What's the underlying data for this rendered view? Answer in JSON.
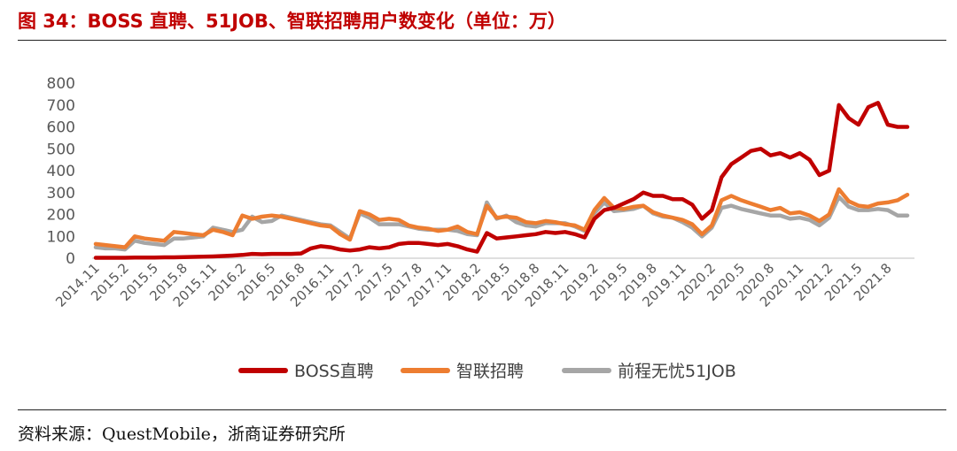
{
  "figure": {
    "title": "图 34：BOSS 直聘、51JOB、智联招聘用户数变化（单位：万）",
    "source": "资料来源：QuestMobile，浙商证券研究所"
  },
  "chart_data": {
    "type": "line",
    "title": "图 34：BOSS 直聘、51JOB、智联招聘用户数变化（单位：万）",
    "xlabel": "",
    "ylabel": "",
    "ylim": [
      0,
      800
    ],
    "yticks": [
      "0",
      "100",
      "200",
      "300",
      "400",
      "500",
      "600",
      "700",
      "800"
    ],
    "xtick_labels": [
      "2014.11",
      "2015.2",
      "2015.5",
      "2015.8",
      "2015.11",
      "2016.2",
      "2016.5",
      "2016.8",
      "2016.11",
      "2017.2",
      "2017.5",
      "2017.8",
      "2017.11",
      "2018.2",
      "2018.5",
      "2018.8",
      "2018.11",
      "2019.2",
      "2019.5",
      "2019.8",
      "2019.11",
      "2020.2",
      "2020.5",
      "2020.8",
      "2020.11",
      "2021.2",
      "2021.5",
      "2021.8"
    ],
    "grid": false,
    "legend_position": "bottom",
    "x": [
      "2014.11",
      "2014.12",
      "2015.1",
      "2015.2",
      "2015.3",
      "2015.4",
      "2015.5",
      "2015.6",
      "2015.7",
      "2015.8",
      "2015.9",
      "2015.10",
      "2015.11",
      "2015.12",
      "2016.1",
      "2016.2",
      "2016.3",
      "2016.4",
      "2016.5",
      "2016.6",
      "2016.7",
      "2016.8",
      "2016.9",
      "2016.10",
      "2016.11",
      "2016.12",
      "2017.1",
      "2017.2",
      "2017.3",
      "2017.4",
      "2017.5",
      "2017.6",
      "2017.7",
      "2017.8",
      "2017.9",
      "2017.10",
      "2017.11",
      "2017.12",
      "2018.1",
      "2018.2",
      "2018.3",
      "2018.4",
      "2018.5",
      "2018.6",
      "2018.7",
      "2018.8",
      "2018.9",
      "2018.10",
      "2018.11",
      "2018.12",
      "2019.1",
      "2019.2",
      "2019.3",
      "2019.4",
      "2019.5",
      "2019.6",
      "2019.7",
      "2019.8",
      "2019.9",
      "2019.10",
      "2019.11",
      "2019.12",
      "2020.1",
      "2020.2",
      "2020.3",
      "2020.4",
      "2020.5",
      "2020.6",
      "2020.7",
      "2020.8",
      "2020.9",
      "2020.10",
      "2020.11",
      "2020.12",
      "2021.1",
      "2021.2",
      "2021.3",
      "2021.4",
      "2021.5",
      "2021.6",
      "2021.7",
      "2021.8",
      "2021.9",
      "2021.10"
    ],
    "series": [
      {
        "name": "BOSS直聘",
        "color": "#c00000",
        "values": [
          2,
          2,
          2,
          2,
          3,
          3,
          3,
          4,
          4,
          5,
          6,
          7,
          8,
          10,
          12,
          15,
          20,
          18,
          20,
          20,
          20,
          22,
          45,
          55,
          50,
          40,
          35,
          40,
          50,
          45,
          50,
          65,
          70,
          70,
          65,
          60,
          65,
          55,
          40,
          30,
          115,
          90,
          95,
          100,
          105,
          110,
          120,
          115,
          120,
          110,
          95,
          180,
          220,
          230,
          250,
          270,
          300,
          285,
          285,
          270,
          270,
          245,
          180,
          220,
          370,
          430,
          460,
          490,
          500,
          470,
          480,
          460,
          480,
          450,
          380,
          400,
          700,
          640,
          610,
          690,
          710,
          610,
          600,
          600
        ]
      },
      {
        "name": "智联招聘",
        "color": "#ed7d31",
        "values": [
          65,
          60,
          55,
          50,
          100,
          90,
          85,
          80,
          120,
          115,
          110,
          105,
          130,
          120,
          105,
          195,
          180,
          190,
          195,
          190,
          180,
          170,
          160,
          150,
          145,
          110,
          85,
          215,
          200,
          175,
          180,
          175,
          150,
          140,
          135,
          125,
          130,
          145,
          120,
          110,
          240,
          185,
          190,
          185,
          165,
          160,
          170,
          165,
          155,
          150,
          130,
          220,
          275,
          230,
          225,
          235,
          240,
          210,
          195,
          185,
          175,
          155,
          110,
          150,
          265,
          285,
          265,
          250,
          235,
          220,
          230,
          205,
          210,
          195,
          170,
          200,
          315,
          260,
          240,
          235,
          250,
          255,
          265,
          290
        ]
      },
      {
        "name": "前程无忧51JOB",
        "color": "#a6a6a6",
        "values": [
          50,
          45,
          45,
          40,
          80,
          70,
          65,
          60,
          90,
          90,
          95,
          100,
          140,
          130,
          120,
          130,
          190,
          165,
          170,
          195,
          185,
          175,
          165,
          155,
          150,
          120,
          90,
          205,
          185,
          155,
          155,
          155,
          145,
          135,
          130,
          130,
          130,
          125,
          110,
          105,
          255,
          180,
          195,
          165,
          150,
          145,
          160,
          160,
          160,
          145,
          125,
          205,
          255,
          215,
          220,
          225,
          240,
          205,
          190,
          185,
          165,
          140,
          100,
          140,
          230,
          240,
          225,
          215,
          205,
          195,
          195,
          180,
          185,
          175,
          150,
          185,
          280,
          235,
          220,
          220,
          225,
          220,
          195,
          195
        ]
      }
    ]
  }
}
